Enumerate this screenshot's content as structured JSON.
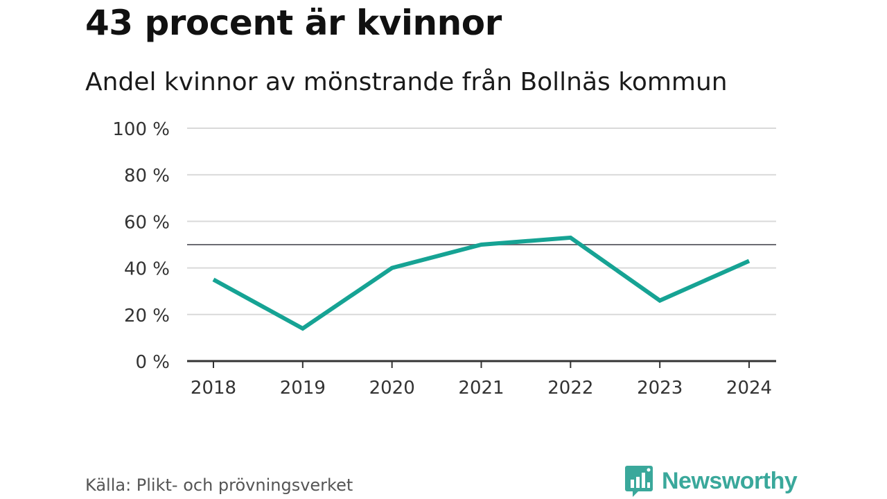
{
  "header": {
    "title": "43 procent är kvinnor",
    "subtitle": "Andel kvinnor av mönstrande från Bollnäs kommun"
  },
  "footer": {
    "source": "Källa: Plikt- och prövningsverket",
    "brand": "Newsworthy",
    "brand_icon": "bar-chart-speech-bubble-icon"
  },
  "colors": {
    "line": "#16a394",
    "grid": "#d9d9d9",
    "reference": "#6b6b72",
    "axis": "#333333",
    "brand": "#3aa89b"
  },
  "chart_data": {
    "type": "line",
    "title": "43 procent är kvinnor",
    "subtitle": "Andel kvinnor av mönstrande från Bollnäs kommun",
    "xlabel": "",
    "ylabel": "",
    "categories": [
      "2018",
      "2019",
      "2020",
      "2021",
      "2022",
      "2023",
      "2024"
    ],
    "series": [
      {
        "name": "Andel kvinnor",
        "values": [
          35,
          14,
          40,
          50,
          53,
          26,
          43
        ]
      }
    ],
    "ylim": [
      0,
      100
    ],
    "yticks": [
      0,
      20,
      40,
      60,
      80,
      100
    ],
    "ytick_labels": [
      "0 %",
      "20 %",
      "40 %",
      "60 %",
      "80 %",
      "100 %"
    ],
    "reference_line": 50,
    "grid": true,
    "legend": "none"
  }
}
